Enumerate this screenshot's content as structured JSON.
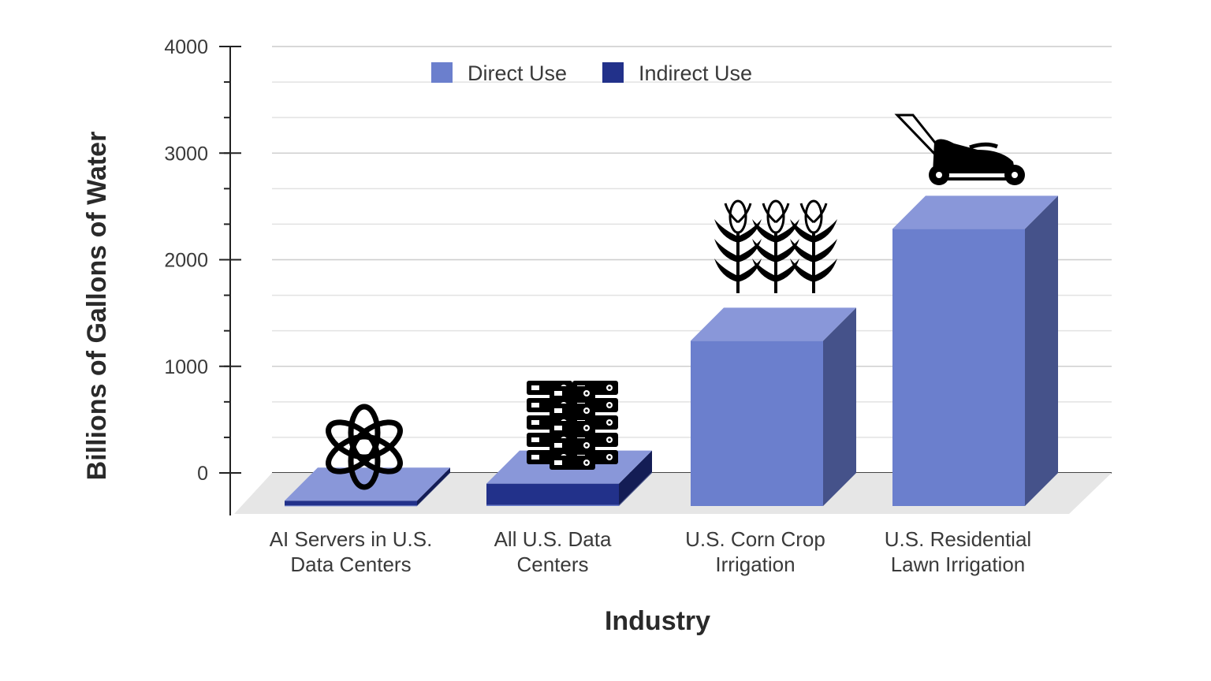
{
  "chart_data": {
    "type": "bar",
    "title": "",
    "xlabel": "Industry",
    "ylabel": "Billions of Gallons of Water",
    "ylim": [
      0,
      4000
    ],
    "yticks": [
      0,
      1000,
      2000,
      3000,
      4000
    ],
    "categories": [
      [
        "AI Servers in U.S.",
        "Data Centers"
      ],
      [
        "All U.S. Data",
        "Centers"
      ],
      [
        "U.S. Corn Crop",
        "Irrigation"
      ],
      [
        "U.S. Residential",
        "Lawn Irrigation"
      ]
    ],
    "series": [
      {
        "name": "Direct Use",
        "values": [
          5,
          10,
          1550,
          2600
        ],
        "color": "#6b7fcd"
      },
      {
        "name": "Indirect Use",
        "values": [
          45,
          200,
          0,
          0
        ],
        "color": "#22318a"
      }
    ],
    "stacked": true,
    "grid": true,
    "legend": "top-center",
    "category_icons": [
      "openai-logo-icon",
      "server-rack-icon",
      "corn-plants-icon",
      "lawn-mower-icon"
    ]
  }
}
